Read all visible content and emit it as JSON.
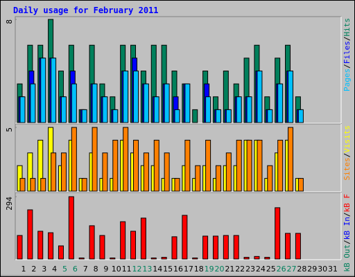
{
  "chart_data": {
    "type": "bar",
    "title": "Daily usage for February 2011",
    "categories": [
      "1",
      "2",
      "3",
      "4",
      "5",
      "6",
      "7",
      "8",
      "9",
      "10",
      "11",
      "12",
      "13",
      "14",
      "15",
      "16",
      "17",
      "18",
      "19",
      "20",
      "21",
      "22",
      "23",
      "24",
      "25",
      "26",
      "27",
      "28",
      "29",
      "30",
      "31"
    ],
    "category_colors": [
      "#000000",
      "#000000",
      "#000000",
      "#000000",
      "#00805c",
      "#00805c",
      "#000000",
      "#000000",
      "#000000",
      "#000000",
      "#000000",
      "#00805c",
      "#00805c",
      "#000000",
      "#000000",
      "#000000",
      "#000000",
      "#000000",
      "#00805c",
      "#00805c",
      "#000000",
      "#000000",
      "#000000",
      "#000000",
      "#000000",
      "#00805c",
      "#00805c",
      "#000000",
      "#000000",
      "#000000",
      "#000000"
    ],
    "legend_separator": "/",
    "panels": [
      {
        "ylim": [
          0,
          8
        ],
        "yticks": [
          8
        ],
        "series": [
          {
            "name": "Hits",
            "color": "#00805c",
            "values": [
              3,
              6,
              6,
              8,
              4,
              6,
              1,
              6,
              3,
              2,
              6,
              6,
              4,
              6,
              6,
              4,
              3,
              1,
              4,
              2,
              4,
              3,
              5,
              6,
              2,
              5,
              6,
              2,
              null,
              null,
              null
            ]
          },
          {
            "name": "Files",
            "color": "#0000ff",
            "values": [
              2,
              4,
              5,
              5,
              2,
              4,
              1,
              3,
              2,
              1,
              4,
              5,
              3,
              2,
              3,
              2,
              3,
              0,
              3,
              1,
              1,
              2,
              2,
              4,
              1,
              3,
              4,
              1,
              null,
              null,
              null
            ]
          },
          {
            "name": "Pages",
            "color": "#00c0ff",
            "values": [
              2,
              3,
              5,
              5,
              2,
              3,
              1,
              3,
              2,
              1,
              4,
              4,
              3,
              2,
              3,
              1,
              3,
              0,
              2,
              1,
              1,
              2,
              2,
              4,
              1,
              3,
              4,
              1,
              null,
              null,
              null
            ]
          }
        ]
      },
      {
        "ylim": [
          0,
          5
        ],
        "yticks": [
          5
        ],
        "series": [
          {
            "name": "Visits",
            "color": "#ffff00",
            "values": [
              2,
              3,
              4,
              5,
              2,
              4,
              1,
              3,
              1,
              1,
              4,
              3,
              2,
              2,
              1,
              1,
              2,
              1,
              2,
              1,
              2,
              2,
              4,
              4,
              1,
              3,
              4,
              1,
              null,
              null,
              null
            ]
          },
          {
            "name": "Sites",
            "color": "#ff8000",
            "values": [
              1,
              1,
              1,
              3,
              3,
              5,
              1,
              5,
              3,
              4,
              5,
              4,
              3,
              4,
              3,
              1,
              4,
              2,
              4,
              2,
              3,
              4,
              4,
              4,
              2,
              4,
              5,
              1,
              null,
              null,
              null
            ]
          }
        ]
      },
      {
        "ylim": [
          0,
          294
        ],
        "yticks": [
          294
        ],
        "series": [
          {
            "name": "kB F",
            "color": "#ff0000",
            "values": [
              111,
              232,
              131,
              124,
              62,
              294,
              5,
              157,
              111,
              5,
              176,
              131,
              193,
              5,
              8,
              105,
              206,
              5,
              108,
              108,
              111,
              111,
              8,
              12,
              8,
              242,
              121,
              121,
              null,
              null,
              null
            ]
          },
          {
            "name": "kB In",
            "color": "#0000ff",
            "values": [
              0,
              0,
              0,
              0,
              0,
              0,
              0,
              0,
              0,
              0,
              0,
              0,
              0,
              0,
              0,
              0,
              0,
              0,
              0,
              0,
              0,
              0,
              0,
              0,
              0,
              0,
              0,
              0,
              null,
              null,
              null
            ]
          },
          {
            "name": "kB Out",
            "color": "#00805c",
            "values": [
              0,
              0,
              0,
              0,
              0,
              0,
              0,
              0,
              0,
              0,
              0,
              0,
              0,
              0,
              0,
              0,
              0,
              0,
              0,
              0,
              0,
              0,
              0,
              0,
              0,
              0,
              0,
              0,
              null,
              null,
              null
            ]
          }
        ]
      }
    ]
  }
}
